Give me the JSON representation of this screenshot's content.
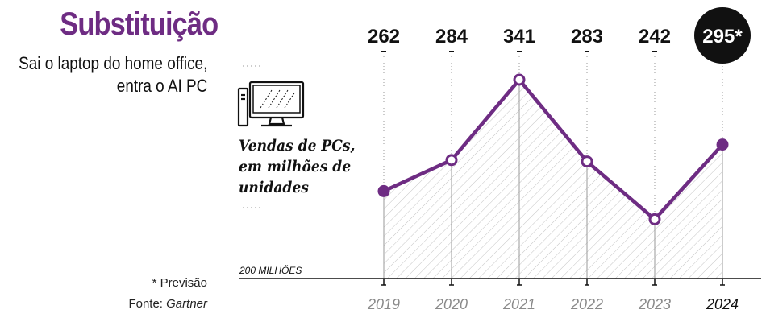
{
  "header": {
    "title": "Substituição",
    "subtitle_line1": "Sai o laptop do home office,",
    "subtitle_line2": "entra o AI PC"
  },
  "series_label": {
    "line1": "Vendas de PCs,",
    "line2": "em milhões de",
    "line3": "unidades"
  },
  "notes": {
    "forecast": "* Previsão",
    "source_prefix": "Fonte: ",
    "source_name": "Gartner"
  },
  "icons": {
    "computer": "desktop-computer-icon"
  },
  "colors": {
    "accent": "#6e2c83",
    "highlight_bg": "#111111",
    "hatch": "#bdbdbd",
    "muted_year": "#8a8a8a"
  },
  "chart_data": {
    "type": "area",
    "categories": [
      "2019",
      "2020",
      "2021",
      "2022",
      "2023",
      "2024"
    ],
    "values": [
      262,
      284,
      341,
      283,
      242,
      295
    ],
    "value_labels": [
      "262",
      "284",
      "341",
      "283",
      "242",
      "295*"
    ],
    "baseline_label": "200 MILHÕES",
    "ylim": [
      200,
      341
    ],
    "forecast_index": 5,
    "highlight_category": "2024"
  }
}
